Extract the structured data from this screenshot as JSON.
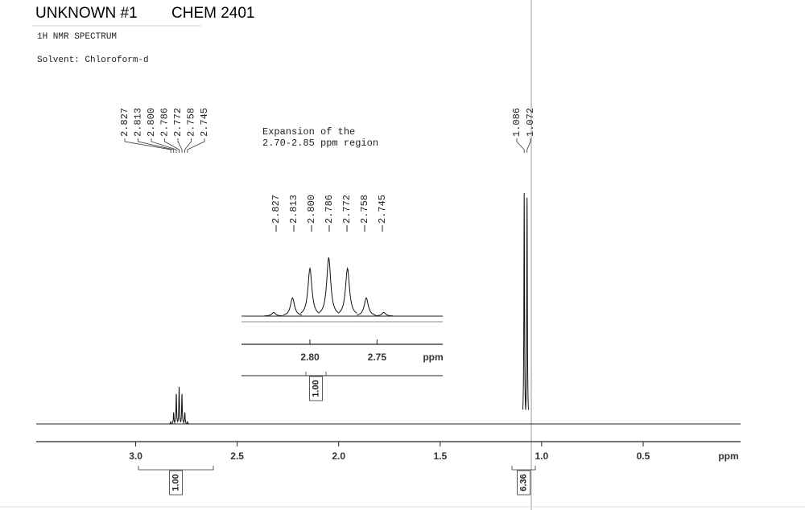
{
  "header": {
    "title": "UNKNOWN #1",
    "course": "CHEM 2401",
    "subtitle": "1H NMR SPECTRUM",
    "solvent": "Solvent: Chloroform-d"
  },
  "chart_data": [
    {
      "type": "nmr",
      "x_label": "ppm",
      "xlim": [
        3.49,
        0.02
      ],
      "xticks": [
        {
          "value": 3,
          "label": "3.0"
        },
        2.5,
        {
          "value": 2,
          "label": "2.0"
        },
        1.5,
        {
          "value": 1,
          "label": "1.0"
        },
        0.5
      ],
      "peaks": {
        "x": [
          2.827,
          2.813,
          {
            "value": 2.8,
            "label": "2.800"
          },
          2.786,
          2.772,
          2.758,
          2.745,
          1.086,
          1.072
        ],
        "values": [
          1,
          5,
          13,
          16,
          13,
          5,
          1,
          100,
          98
        ]
      },
      "integrals": [
        {
          "value": 1,
          "label": "1.00"
        },
        6.36
      ]
    },
    {
      "type": "nmr",
      "title": [
        "Expansion of the",
        "2.70-2.85 ppm region"
      ],
      "x_label": "ppm",
      "xlim": [
        2.851,
        2.701
      ],
      "xticks": [
        {
          "value": 2.8,
          "label": "2.80"
        },
        2.75
      ],
      "peaks": {
        "x": [
          2.827,
          2.813,
          {
            "value": 2.8,
            "label": "2.800"
          },
          2.786,
          2.772,
          2.758,
          2.745
        ],
        "values": [
          1,
          5,
          13,
          16,
          13,
          5,
          1
        ]
      },
      "integrals": [
        {
          "value": 1,
          "label": "1.00"
        }
      ]
    }
  ]
}
